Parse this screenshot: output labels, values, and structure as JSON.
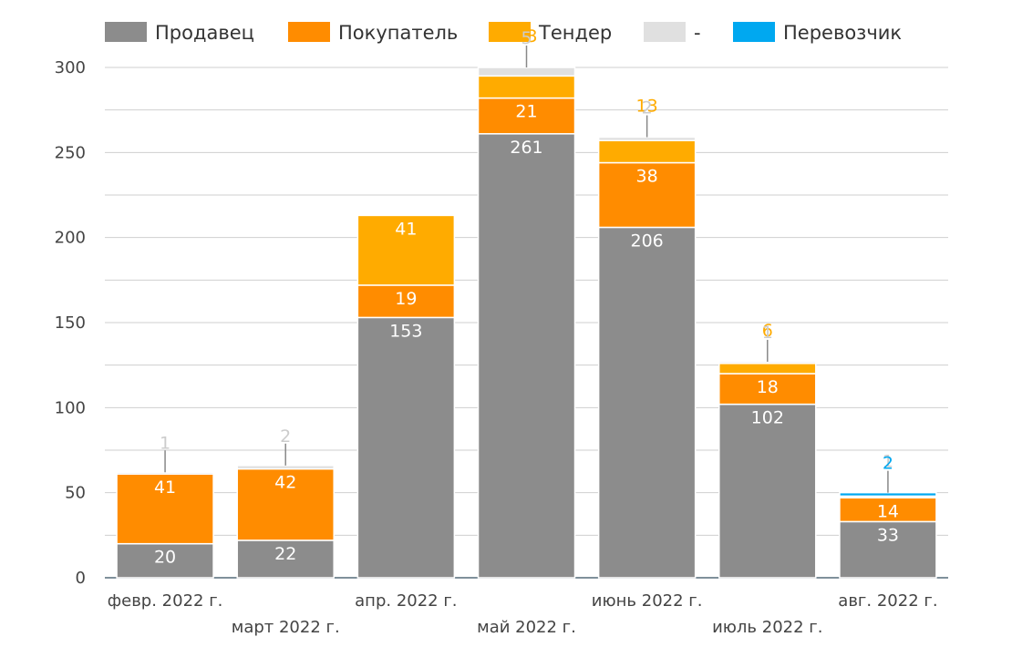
{
  "chart_data": {
    "type": "bar",
    "stacked": true,
    "categories": [
      "февр. 2022 г.",
      "март 2022 г.",
      "апр. 2022 г.",
      "май 2022 г.",
      "июнь 2022 г.",
      "июль 2022 г.",
      "авг. 2022 г."
    ],
    "series": [
      {
        "name": "Продавец",
        "color": "#8c8c8c",
        "values": [
          20,
          22,
          153,
          261,
          206,
          102,
          33
        ]
      },
      {
        "name": "Покупатель",
        "color": "#ff8c00",
        "values": [
          41,
          42,
          19,
          21,
          38,
          18,
          14
        ]
      },
      {
        "name": "Тендер",
        "color": "#ffab00",
        "values": [
          0,
          0,
          41,
          13,
          13,
          6,
          0
        ]
      },
      {
        "name": "-",
        "color": "#e0e0e0",
        "values": [
          1,
          2,
          0,
          5,
          2,
          1,
          1
        ]
      },
      {
        "name": "Перевозчик",
        "color": "#00a8f0",
        "values": [
          0,
          0,
          0,
          0,
          0,
          0,
          2
        ]
      }
    ],
    "ylim": [
      0,
      300
    ],
    "yticks": [
      0,
      50,
      100,
      150,
      200,
      250,
      300
    ],
    "grid": true,
    "legend": "top",
    "xlabel": "",
    "ylabel": "",
    "title": ""
  }
}
